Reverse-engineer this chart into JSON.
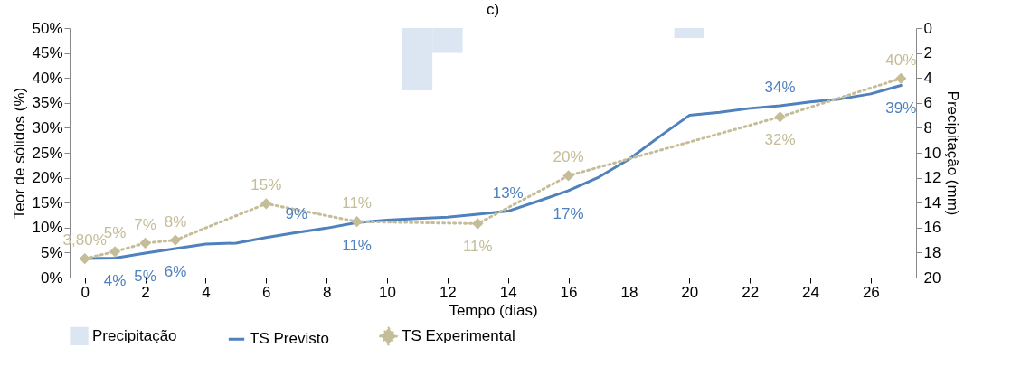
{
  "chart_data": {
    "type": "line",
    "title": "c)",
    "xlabel": "Tempo (dias)",
    "ylabel": "Teor de sólidos (%)",
    "y2label": "Precipitação (mm)",
    "xlim": [
      -0.5,
      27.5
    ],
    "xticks": [
      0,
      2,
      4,
      6,
      8,
      10,
      12,
      14,
      16,
      18,
      20,
      22,
      24,
      26
    ],
    "ylim": [
      0,
      50
    ],
    "yticks": [
      {
        "value": 0,
        "label": "0%"
      },
      {
        "value": 5,
        "label": "5%"
      },
      {
        "value": 10,
        "label": "10%"
      },
      {
        "value": 15,
        "label": "15%"
      },
      {
        "value": 20,
        "label": "20%"
      },
      {
        "value": 25,
        "label": "25%"
      },
      {
        "value": 30,
        "label": "30%"
      },
      {
        "value": 35,
        "label": "35%"
      },
      {
        "value": 40,
        "label": "40%"
      },
      {
        "value": 45,
        "label": "45%"
      },
      {
        "value": 50,
        "label": "50%"
      }
    ],
    "y2lim": [
      20,
      0
    ],
    "y2ticks": [
      0,
      2,
      4,
      6,
      8,
      10,
      12,
      14,
      16,
      18,
      20
    ],
    "grid": false,
    "legend": "bottom",
    "series": [
      {
        "name": "Precipitação",
        "type": "bar",
        "axis": "y2",
        "color": "#dce6f2",
        "x": [
          11,
          12,
          20
        ],
        "values": [
          5,
          2,
          0.8
        ]
      },
      {
        "name": "TS Previsto",
        "color": "#4f81bd",
        "line_style": "solid",
        "marker": "none",
        "x": [
          0,
          1,
          2,
          3,
          4,
          5,
          6,
          7,
          8,
          9,
          10,
          11,
          12,
          13,
          14,
          15,
          16,
          17,
          18,
          19,
          20,
          21,
          22,
          23,
          24,
          25,
          26,
          27
        ],
        "values": [
          3.8,
          3.9,
          4.9,
          5.8,
          6.7,
          6.9,
          8.0,
          9.0,
          9.9,
          11.0,
          11.5,
          11.8,
          12.1,
          12.7,
          13.3,
          15.3,
          17.4,
          20.1,
          23.7,
          28.2,
          32.5,
          33.1,
          33.9,
          34.4,
          35.2,
          35.8,
          36.8,
          38.5
        ],
        "value_labels": [
          null,
          "4%",
          "5%",
          "6%",
          null,
          null,
          null,
          "9%",
          null,
          "11%",
          null,
          null,
          null,
          null,
          "13%",
          null,
          "17%",
          null,
          null,
          null,
          null,
          null,
          null,
          "34%",
          null,
          null,
          null,
          "39%"
        ]
      },
      {
        "name": "TS Experimental",
        "color": "#c4bd97",
        "line_style": "dotted",
        "marker": "diamond",
        "x": [
          0,
          1,
          2,
          3,
          6,
          9,
          13,
          16,
          23,
          27
        ],
        "values": [
          3.8,
          5.2,
          6.9,
          7.5,
          14.8,
          11.2,
          10.8,
          20.4,
          32.2,
          39.9
        ],
        "value_labels": [
          "3,80%",
          "5%",
          "7%",
          "8%",
          "15%",
          "11%",
          "11%",
          "20%",
          "32%",
          "40%"
        ]
      }
    ]
  }
}
